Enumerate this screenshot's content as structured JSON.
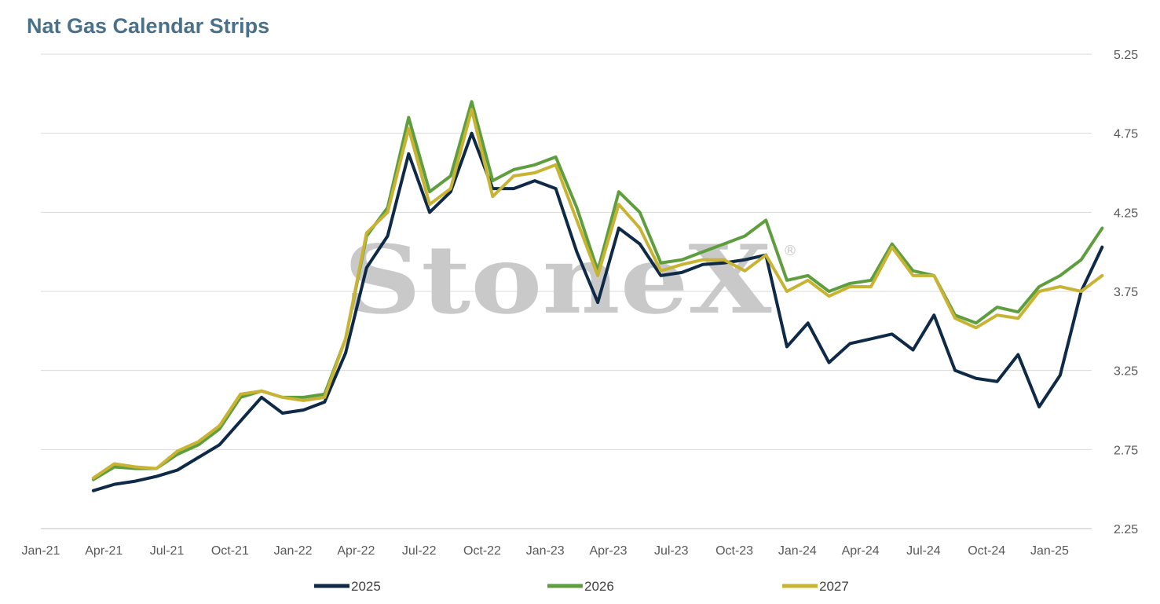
{
  "title": "Nat Gas Calendar Strips",
  "watermark": "StoneX",
  "watermark_mark": "®",
  "chart_data": {
    "type": "line",
    "title": "Nat Gas Calendar Strips",
    "xlabel": "",
    "ylabel": "",
    "ylim": [
      2.25,
      5.25
    ],
    "y_ticks": [
      "2.25",
      "2.75",
      "3.25",
      "3.75",
      "4.25",
      "4.75",
      "5.25"
    ],
    "x_ticks": [
      "Jan-21",
      "Apr-21",
      "Jul-21",
      "Oct-21",
      "Jan-22",
      "Apr-22",
      "Jul-22",
      "Oct-22",
      "Jan-23",
      "Apr-23",
      "Jul-23",
      "Oct-23",
      "Jan-24",
      "Apr-24",
      "Jul-24",
      "Oct-24",
      "Jan-25"
    ],
    "xlim": [
      "2021-01",
      "2025-03"
    ],
    "grid": true,
    "legend_position": "bottom",
    "dates": [
      "2021-03",
      "2021-04",
      "2021-05",
      "2021-06",
      "2021-07",
      "2021-08",
      "2021-09",
      "2021-10",
      "2021-11",
      "2021-12",
      "2022-01",
      "2022-02",
      "2022-03",
      "2022-04",
      "2022-05",
      "2022-06",
      "2022-07",
      "2022-08",
      "2022-09",
      "2022-10",
      "2022-11",
      "2022-12",
      "2023-01",
      "2023-02",
      "2023-03",
      "2023-04",
      "2023-05",
      "2023-06",
      "2023-07",
      "2023-08",
      "2023-09",
      "2023-10",
      "2023-11",
      "2023-12",
      "2024-01",
      "2024-02",
      "2024-03",
      "2024-04",
      "2024-05",
      "2024-06",
      "2024-07",
      "2024-08",
      "2024-09",
      "2024-10",
      "2024-11",
      "2024-12",
      "2025-01",
      "2025-02",
      "2025-03"
    ],
    "series": [
      {
        "name": "2025",
        "color": "#0e2a47",
        "values": [
          2.49,
          2.53,
          2.55,
          2.58,
          2.62,
          2.7,
          2.78,
          2.93,
          3.08,
          2.98,
          3.0,
          3.05,
          3.36,
          3.9,
          4.1,
          4.62,
          4.25,
          4.38,
          4.75,
          4.4,
          4.4,
          4.45,
          4.4,
          4.0,
          3.68,
          4.15,
          4.05,
          3.85,
          3.87,
          3.92,
          3.93,
          3.95,
          3.98,
          3.4,
          3.55,
          3.3,
          3.42,
          3.45,
          3.48,
          3.38,
          3.6,
          3.25,
          3.2,
          3.18,
          3.35,
          3.02,
          3.22,
          3.75,
          4.03
        ]
      },
      {
        "name": "2026",
        "color": "#5f9e3f",
        "values": [
          2.56,
          2.64,
          2.63,
          2.63,
          2.72,
          2.78,
          2.88,
          3.08,
          3.12,
          3.08,
          3.08,
          3.1,
          3.45,
          4.1,
          4.28,
          4.85,
          4.38,
          4.48,
          4.95,
          4.45,
          4.52,
          4.55,
          4.6,
          4.28,
          3.88,
          4.38,
          4.25,
          3.93,
          3.95,
          4.0,
          4.05,
          4.1,
          4.2,
          3.82,
          3.85,
          3.75,
          3.8,
          3.82,
          4.05,
          3.88,
          3.85,
          3.6,
          3.55,
          3.65,
          3.62,
          3.78,
          3.85,
          3.95,
          4.15
        ]
      },
      {
        "name": "2027",
        "color": "#c8b333",
        "values": [
          2.57,
          2.66,
          2.64,
          2.63,
          2.74,
          2.8,
          2.9,
          3.1,
          3.12,
          3.08,
          3.06,
          3.08,
          3.45,
          4.12,
          4.25,
          4.78,
          4.3,
          4.4,
          4.9,
          4.35,
          4.48,
          4.5,
          4.55,
          4.2,
          3.85,
          4.3,
          4.15,
          3.88,
          3.92,
          3.95,
          3.95,
          3.88,
          3.98,
          3.75,
          3.82,
          3.72,
          3.78,
          3.78,
          4.03,
          3.85,
          3.85,
          3.58,
          3.52,
          3.6,
          3.58,
          3.75,
          3.78,
          3.75,
          3.85
        ]
      }
    ]
  }
}
